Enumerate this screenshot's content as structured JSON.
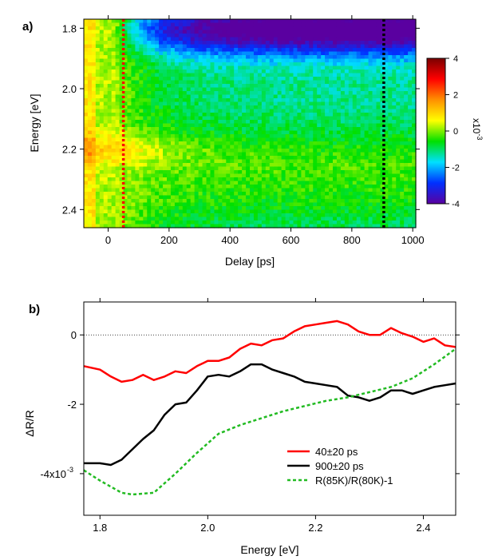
{
  "chart_data": [
    {
      "type": "heatmap",
      "panel_label": "a)",
      "xlabel": "Delay [ps]",
      "ylabel": "Energy [eV]",
      "xlim": [
        -80,
        1010
      ],
      "ylim": [
        1.77,
        2.46
      ],
      "x_ticks": [
        0,
        200,
        400,
        600,
        800,
        1000
      ],
      "x_tick_labels": [
        "0",
        "200",
        "400",
        "600",
        "800",
        "1000"
      ],
      "y_ticks": [
        1.8,
        2.0,
        2.2,
        2.4
      ],
      "y_tick_labels": [
        "1.8",
        "2.0",
        "2.2",
        "2.4"
      ],
      "y_reversed": true,
      "markers": [
        {
          "delay": 50,
          "color": "#ff0000",
          "style": "dotted"
        },
        {
          "delay": 905,
          "color": "#000000",
          "style": "dotted"
        }
      ],
      "colorbar": {
        "min": -4,
        "max": 4,
        "ticks": [
          4,
          2,
          0,
          -2,
          -4
        ],
        "tick_labels": [
          "4",
          "2",
          "0",
          "-2",
          "-4"
        ],
        "label": "x10",
        "label_exp": "-3",
        "colors": [
          "#5a00a0",
          "#0030ff",
          "#00e0ff",
          "#00e000",
          "#ffff00",
          "#ff9000",
          "#ff0000",
          "#7a0000"
        ]
      },
      "grid": false
    },
    {
      "type": "line",
      "panel_label": "b)",
      "xlabel": "Energy [eV]",
      "ylabel": "ΔR/R",
      "xlim": [
        1.77,
        2.46
      ],
      "ylim": [
        -5.2,
        0.95
      ],
      "x_ticks": [
        1.8,
        2.0,
        2.2,
        2.4
      ],
      "x_tick_labels": [
        "1.8",
        "2.0",
        "2.2",
        "2.4"
      ],
      "y_ticks": [
        0,
        -2,
        -4
      ],
      "y_tick_labels": [
        "0",
        "-2",
        "-4x10"
      ],
      "y_tick_exp": "-3",
      "zero_line": true,
      "legend_position": "lower-right",
      "series": [
        {
          "name": "40±20 ps",
          "color": "#ff0000",
          "dash": "solid",
          "x": [
            1.77,
            1.8,
            1.82,
            1.84,
            1.86,
            1.88,
            1.9,
            1.92,
            1.94,
            1.96,
            1.98,
            2.0,
            2.02,
            2.04,
            2.06,
            2.08,
            2.1,
            2.12,
            2.14,
            2.16,
            2.18,
            2.2,
            2.22,
            2.24,
            2.26,
            2.28,
            2.3,
            2.32,
            2.34,
            2.36,
            2.38,
            2.4,
            2.42,
            2.44,
            2.46
          ],
          "y": [
            -0.9,
            -1.0,
            -1.2,
            -1.35,
            -1.3,
            -1.15,
            -1.3,
            -1.2,
            -1.05,
            -1.1,
            -0.9,
            -0.75,
            -0.75,
            -0.65,
            -0.4,
            -0.25,
            -0.3,
            -0.15,
            -0.1,
            0.1,
            0.25,
            0.3,
            0.35,
            0.4,
            0.3,
            0.1,
            0.0,
            0.0,
            0.2,
            0.05,
            -0.05,
            -0.2,
            -0.1,
            -0.3,
            -0.35
          ]
        },
        {
          "name": "900±20 ps",
          "color": "#000000",
          "dash": "solid",
          "x": [
            1.77,
            1.8,
            1.82,
            1.84,
            1.86,
            1.88,
            1.9,
            1.92,
            1.94,
            1.96,
            1.98,
            2.0,
            2.02,
            2.04,
            2.06,
            2.08,
            2.1,
            2.12,
            2.14,
            2.16,
            2.18,
            2.2,
            2.22,
            2.24,
            2.26,
            2.28,
            2.3,
            2.32,
            2.34,
            2.36,
            2.38,
            2.4,
            2.42,
            2.44,
            2.46
          ],
          "y": [
            -3.7,
            -3.7,
            -3.75,
            -3.6,
            -3.3,
            -3.0,
            -2.75,
            -2.3,
            -2.0,
            -1.95,
            -1.6,
            -1.2,
            -1.15,
            -1.2,
            -1.05,
            -0.85,
            -0.85,
            -1.0,
            -1.1,
            -1.2,
            -1.35,
            -1.4,
            -1.45,
            -1.5,
            -1.75,
            -1.8,
            -1.9,
            -1.8,
            -1.6,
            -1.6,
            -1.7,
            -1.6,
            -1.5,
            -1.45,
            -1.4
          ]
        },
        {
          "name": "R(85K)/R(80K)-1",
          "color": "#22bb22",
          "dash": "dotted",
          "x": [
            1.77,
            1.8,
            1.84,
            1.86,
            1.9,
            1.94,
            1.98,
            2.02,
            2.06,
            2.1,
            2.14,
            2.18,
            2.22,
            2.26,
            2.3,
            2.34,
            2.38,
            2.42,
            2.46
          ],
          "y": [
            -3.9,
            -4.2,
            -4.55,
            -4.6,
            -4.55,
            -4.0,
            -3.4,
            -2.85,
            -2.6,
            -2.4,
            -2.2,
            -2.05,
            -1.9,
            -1.8,
            -1.65,
            -1.5,
            -1.25,
            -0.85,
            -0.4
          ]
        }
      ],
      "grid": false
    }
  ]
}
